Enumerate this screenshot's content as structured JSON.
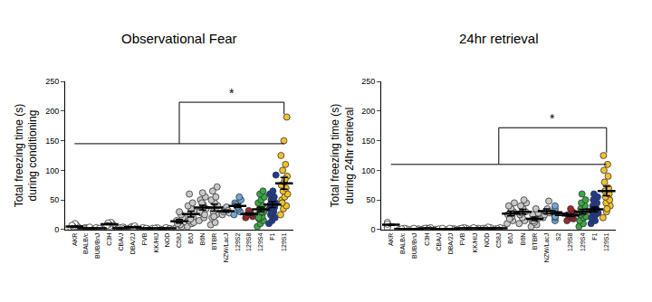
{
  "chart_data": [
    {
      "type": "scatter",
      "title": "Observational Fear",
      "y_label": [
        "Total freezing time (s)",
        "during conditioning"
      ],
      "marker": "circle",
      "categories": [
        "AKR",
        "BALB/c",
        "BUB/BnJ",
        "C3H",
        "CBA/J",
        "DBA/2J",
        "FVB",
        "KK/HIJ",
        "NOD",
        "C58J",
        "B6J",
        "B6N",
        "BTBR",
        "NZW/LacJ",
        "129S2",
        "129S8",
        "129S4",
        "F1",
        "129S1"
      ],
      "colors": [
        "#ffffff",
        "#ffffff",
        "#ffffff",
        "#ffffff",
        "#ffffff",
        "#ffffff",
        "#ffffff",
        "#ffffff",
        "#ffffff",
        "#c8c8c8",
        "#c8c8c8",
        "#c8c8c8",
        "#c8c8c8",
        "#c8c8c8",
        "#6fa8dc",
        "#a3262d",
        "#3aa845",
        "#1f3a93",
        "#f2c12e"
      ],
      "values": [
        [
          2,
          4,
          6,
          8,
          10,
          3,
          5,
          7
        ],
        [
          1,
          2,
          3,
          2,
          1,
          4
        ],
        [
          1,
          2,
          1,
          3,
          2
        ],
        [
          5,
          8,
          10,
          12,
          6,
          9,
          11,
          7
        ],
        [
          1,
          2,
          3,
          1,
          4,
          2
        ],
        [
          2,
          3,
          5,
          4,
          6,
          2
        ],
        [
          1,
          2,
          1,
          3,
          2
        ],
        [
          2,
          1,
          3,
          2
        ],
        [
          1,
          2,
          1,
          3,
          1
        ],
        [
          3,
          5,
          8,
          12,
          15,
          20,
          25,
          30,
          10
        ],
        [
          5,
          10,
          15,
          20,
          25,
          30,
          35,
          40,
          45,
          60,
          12,
          18
        ],
        [
          15,
          20,
          28,
          35,
          42,
          50,
          55,
          62,
          30,
          25,
          45
        ],
        [
          8,
          12,
          20,
          25,
          30,
          40,
          45,
          50,
          55,
          65,
          72,
          22
        ],
        [
          25,
          30,
          35,
          38,
          32,
          28
        ],
        [
          25,
          30,
          35,
          40,
          45,
          50,
          55,
          38,
          42
        ],
        [
          20,
          22,
          25,
          28,
          30,
          32,
          26,
          24
        ],
        [
          5,
          10,
          15,
          18,
          22,
          25,
          28,
          30,
          35,
          40,
          45,
          50,
          55,
          60,
          65,
          20,
          30
        ],
        [
          10,
          15,
          20,
          25,
          30,
          35,
          40,
          45,
          50,
          55,
          60,
          65,
          92,
          28,
          38,
          42,
          48
        ],
        [
          25,
          35,
          40,
          50,
          55,
          60,
          65,
          70,
          75,
          80,
          90,
          100,
          110,
          125,
          150,
          190,
          45,
          85
        ]
      ],
      "mean": [
        5,
        2,
        2,
        9,
        2,
        4,
        2,
        2,
        2,
        14,
        26,
        37,
        37,
        31,
        40,
        26,
        34,
        42,
        78
      ],
      "sem": [
        1,
        0.5,
        0.5,
        1,
        0.5,
        0.7,
        0.5,
        0.5,
        0.5,
        3,
        5,
        4,
        6,
        2,
        3,
        1.5,
        4,
        5,
        10
      ],
      "ylim": [
        0,
        250
      ],
      "yticks": [
        0,
        50,
        100,
        150,
        200,
        250
      ],
      "significance": {
        "text": "*",
        "base_from": "AKR",
        "from": "C58J",
        "to": "129S1",
        "y": 215,
        "y_base": 145,
        "y_end": 195
      }
    },
    {
      "type": "scatter",
      "title": "24hr retrieval",
      "y_label": [
        "Total freezing time (s)",
        "during 24hr retrieval"
      ],
      "marker": "circle",
      "categories": [
        "AKR",
        "BALB/c",
        "BUB/BnJ",
        "C3H",
        "CBA/J",
        "DBA/2J",
        "FVB",
        "KK/HIJ",
        "NOD",
        "C58J",
        "B6J",
        "B6N",
        "BTBR",
        "NZW/LacJ",
        "S2",
        "129S8",
        "129S4",
        "F1",
        "129S1"
      ],
      "colors": [
        "#ffffff",
        "#ffffff",
        "#ffffff",
        "#ffffff",
        "#ffffff",
        "#ffffff",
        "#ffffff",
        "#ffffff",
        "#ffffff",
        "#ffffff",
        "#c8c8c8",
        "#c8c8c8",
        "#c8c8c8",
        "#c8c8c8",
        "#6fa8dc",
        "#a3262d",
        "#3aa845",
        "#1f3a93",
        "#f2c12e"
      ],
      "values": [
        [
          5,
          8,
          10,
          12,
          6,
          3,
          9
        ],
        [
          0,
          1,
          2,
          1
        ],
        [
          0,
          1,
          0,
          2
        ],
        [
          1,
          2,
          3,
          2,
          1
        ],
        [
          0,
          1,
          2
        ],
        [
          0,
          1,
          1,
          2
        ],
        [
          1,
          2,
          3,
          2
        ],
        [
          1,
          2,
          1,
          3
        ],
        [
          2,
          3,
          4,
          1
        ],
        [
          1,
          2,
          3,
          1
        ],
        [
          10,
          15,
          20,
          25,
          30,
          35,
          40,
          45,
          22,
          18
        ],
        [
          10,
          15,
          20,
          25,
          30,
          35,
          40,
          45,
          50,
          28
        ],
        [
          5,
          8,
          12,
          15,
          18,
          22,
          25,
          28,
          35,
          15
        ],
        [
          20,
          25,
          30,
          35,
          48,
          28
        ],
        [
          15,
          20,
          25,
          30,
          35,
          40,
          22
        ],
        [
          15,
          18,
          20,
          22,
          25,
          28,
          30,
          35,
          24
        ],
        [
          5,
          10,
          15,
          20,
          25,
          30,
          35,
          40,
          45,
          50,
          60,
          22,
          28
        ],
        [
          10,
          15,
          20,
          25,
          30,
          35,
          40,
          45,
          50,
          55,
          60,
          28,
          32
        ],
        [
          20,
          30,
          40,
          45,
          50,
          55,
          60,
          65,
          70,
          80,
          90,
          100,
          110,
          125,
          35
        ]
      ],
      "mean": [
        8,
        1,
        1,
        2,
        1,
        1,
        2,
        2,
        2,
        2,
        27,
        30,
        18,
        31,
        27,
        24,
        30,
        34,
        65
      ],
      "sem": [
        1,
        0.4,
        0.4,
        0.4,
        0.5,
        0.4,
        0.4,
        0.4,
        0.6,
        0.5,
        4,
        4,
        3,
        4,
        3,
        2,
        4,
        4,
        8
      ],
      "ylim": [
        0,
        250
      ],
      "yticks": [
        0,
        50,
        100,
        150,
        200,
        250
      ],
      "significance": {
        "text": "*",
        "base_from": "AKR",
        "from": "C58J",
        "to": "129S1",
        "y": 172,
        "y_base": 110,
        "y_end": 130
      }
    }
  ]
}
